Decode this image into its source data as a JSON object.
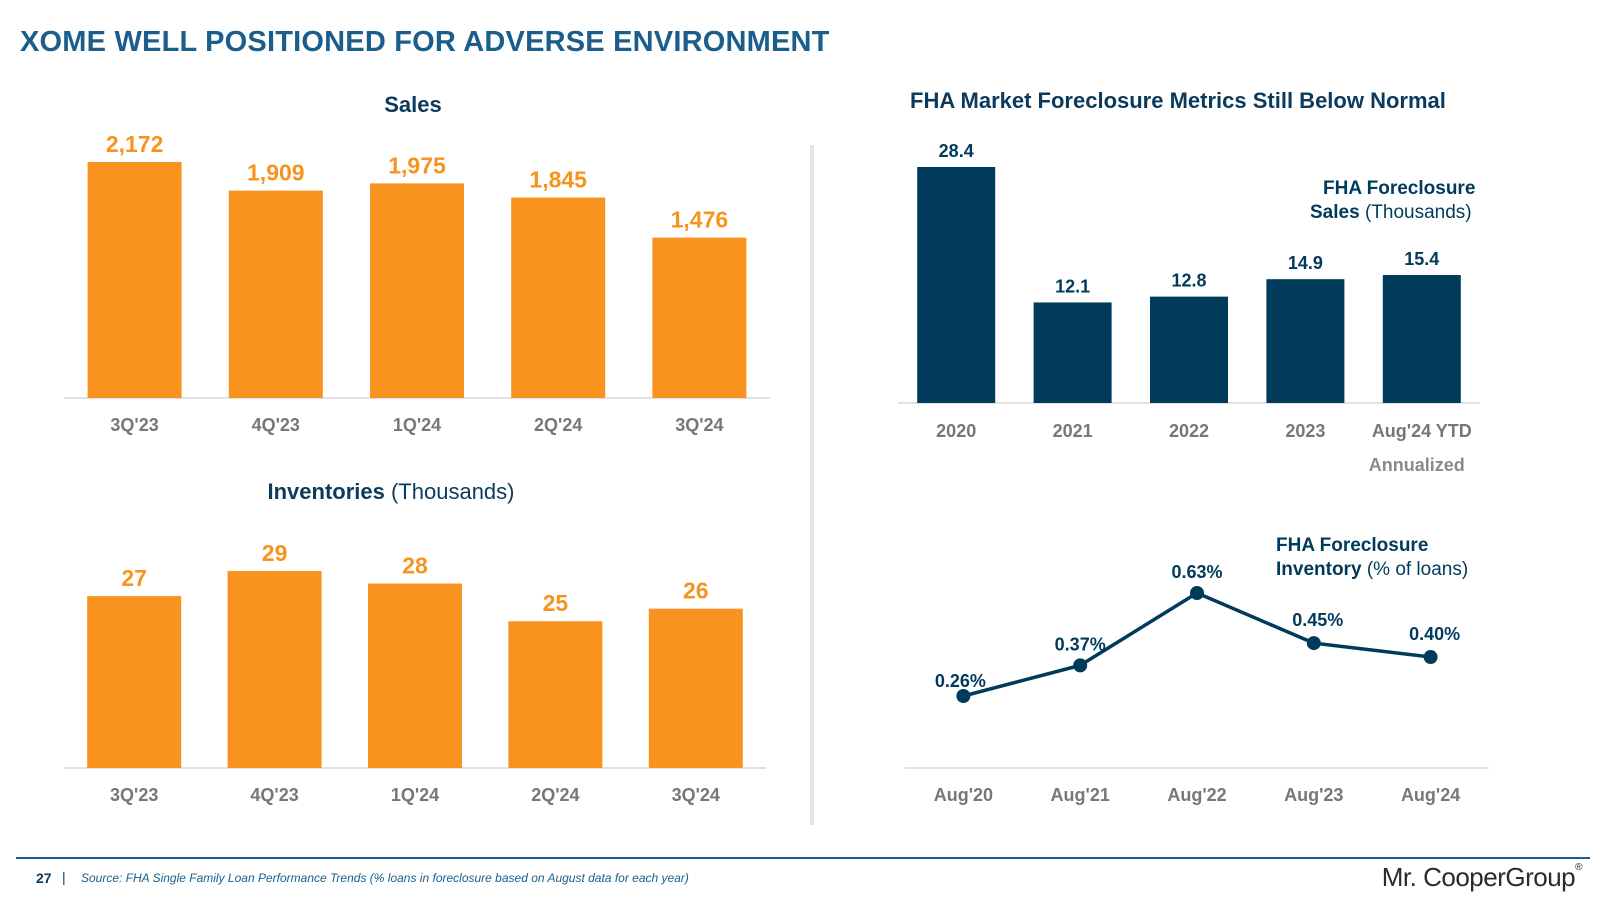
{
  "title": "XOME WELL POSITIONED FOR ADVERSE ENVIRONMENT",
  "footer": {
    "page_number": "27",
    "separator": "|",
    "source": "Source: FHA Single Family Loan Performance Trends (% loans in foreclosure based on August data for each year)",
    "logo": "Mr. CooperGroup",
    "logo_mark": "®"
  },
  "colors": {
    "orange": "#f7931e",
    "navy": "#003b5c",
    "title_blue": "#1b5e8c",
    "axis_label": "#777777"
  },
  "chart_data": [
    {
      "id": "sales",
      "type": "bar",
      "title": "Sales",
      "categories": [
        "3Q'23",
        "4Q'23",
        "1Q'24",
        "2Q'24",
        "3Q'24"
      ],
      "values": [
        2172,
        1909,
        1975,
        1845,
        1476
      ],
      "labels": [
        "2,172",
        "1,909",
        "1,975",
        "1,845",
        "1,476"
      ],
      "ylim": [
        0,
        2172
      ],
      "grid": false
    },
    {
      "id": "inventories",
      "type": "bar",
      "title": "Inventories",
      "title_suffix": "(Thousands)",
      "categories": [
        "3Q'23",
        "4Q'23",
        "1Q'24",
        "2Q'24",
        "3Q'24"
      ],
      "values": [
        27,
        29,
        28,
        25,
        26
      ],
      "labels": [
        "27",
        "29",
        "28",
        "25",
        "26"
      ],
      "ylim": [
        20,
        29
      ],
      "grid": false
    },
    {
      "id": "fha_sales",
      "type": "bar",
      "title": "FHA Market Foreclosure Metrics Still Below Normal",
      "legend_bold": "FHA Foreclosure",
      "legend_bold_2": "Sales",
      "legend_light": "(Thousands)",
      "categories": [
        "2020",
        "2021",
        "2022",
        "2023",
        "Aug'24 YTD"
      ],
      "category_note": "Annualized",
      "values": [
        28.4,
        12.1,
        12.8,
        14.9,
        15.4
      ],
      "labels": [
        "28.4",
        "12.1",
        "12.8",
        "14.9",
        "15.4"
      ],
      "ylim": [
        0,
        28.4
      ],
      "grid": false
    },
    {
      "id": "fha_inventory",
      "type": "line",
      "legend_bold": "FHA Foreclosure",
      "legend_bold_2": "Inventory",
      "legend_light": "(% of loans)",
      "categories": [
        "Aug'20",
        "Aug'21",
        "Aug'22",
        "Aug'23",
        "Aug'24"
      ],
      "values": [
        0.26,
        0.37,
        0.63,
        0.45,
        0.4
      ],
      "labels": [
        "0.26%",
        "0.37%",
        "0.63%",
        "0.45%",
        "0.40%"
      ],
      "ylim": [
        0,
        0.63
      ],
      "grid": false
    }
  ]
}
